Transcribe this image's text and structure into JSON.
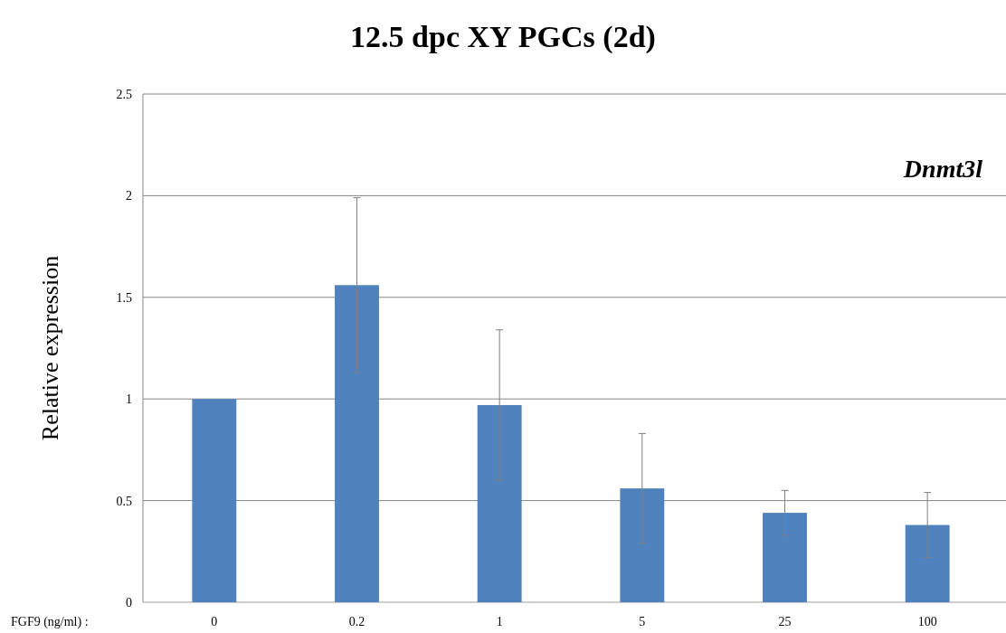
{
  "chart_data": {
    "type": "bar",
    "title": "12.5 dpc XY PGCs (2d)",
    "xlabel": "FGF9 (ng/ml) :",
    "ylabel": "Relative expression",
    "annotations": [
      "Dnmt3l"
    ],
    "categories": [
      "0",
      "0.2",
      "1",
      "5",
      "25",
      "100"
    ],
    "values": [
      1.0,
      1.56,
      0.97,
      0.56,
      0.44,
      0.38
    ],
    "errors": [
      null,
      0.43,
      0.37,
      0.27,
      0.11,
      0.16
    ],
    "color": "#4f81bd",
    "ylim": [
      0,
      2.5
    ],
    "yticks": [
      0,
      0.5,
      1,
      1.5,
      2,
      2.5
    ],
    "grid": "y"
  }
}
